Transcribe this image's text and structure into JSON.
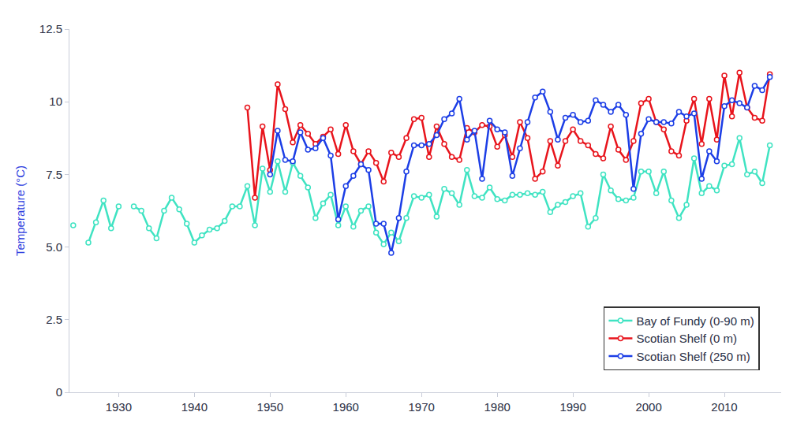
{
  "chart_data": {
    "type": "line",
    "y_label": "Temperature (°C)",
    "x": [
      1924,
      1925,
      1926,
      1927,
      1928,
      1929,
      1930,
      1931,
      1932,
      1933,
      1934,
      1935,
      1936,
      1937,
      1938,
      1939,
      1940,
      1941,
      1942,
      1943,
      1944,
      1945,
      1946,
      1947,
      1948,
      1949,
      1950,
      1951,
      1952,
      1953,
      1954,
      1955,
      1956,
      1957,
      1958,
      1959,
      1960,
      1961,
      1962,
      1963,
      1964,
      1965,
      1966,
      1967,
      1968,
      1969,
      1970,
      1971,
      1972,
      1973,
      1974,
      1975,
      1976,
      1977,
      1978,
      1979,
      1980,
      1981,
      1982,
      1983,
      1984,
      1985,
      1986,
      1987,
      1988,
      1989,
      1990,
      1991,
      1992,
      1993,
      1994,
      1995,
      1996,
      1997,
      1998,
      1999,
      2000,
      2001,
      2002,
      2003,
      2004,
      2005,
      2006,
      2007,
      2008,
      2009,
      2010,
      2011,
      2012,
      2013,
      2014,
      2015,
      2016
    ],
    "series": [
      {
        "name": "Bay of Fundy (0-90 m)",
        "color": "#3fe3c2",
        "marker": "circle",
        "values": [
          5.75,
          null,
          5.15,
          5.85,
          6.6,
          5.65,
          6.4,
          null,
          6.4,
          6.25,
          5.65,
          5.3,
          6.25,
          6.7,
          6.3,
          5.8,
          5.15,
          5.4,
          5.6,
          5.65,
          5.9,
          6.4,
          6.4,
          7.1,
          5.75,
          7.7,
          6.9,
          7.95,
          6.9,
          7.9,
          7.45,
          7.05,
          6.0,
          6.5,
          6.8,
          5.75,
          6.4,
          5.7,
          6.25,
          6.4,
          5.5,
          5.1,
          5.5,
          5.2,
          6.0,
          6.75,
          6.7,
          6.8,
          6.05,
          7.0,
          6.85,
          6.45,
          7.65,
          6.75,
          6.7,
          7.05,
          6.65,
          6.6,
          6.8,
          6.8,
          6.85,
          6.8,
          6.9,
          6.2,
          6.45,
          6.55,
          6.75,
          6.85,
          5.7,
          6.0,
          7.5,
          6.95,
          6.65,
          6.6,
          6.7,
          7.6,
          7.6,
          6.85,
          7.6,
          6.6,
          6.0,
          6.45,
          8.05,
          6.85,
          7.1,
          6.95,
          7.8,
          7.85,
          8.75,
          7.5,
          7.6,
          7.2,
          8.5
        ]
      },
      {
        "name": "Scotian Shelf (0 m)",
        "color": "#e8141c",
        "marker": "circle",
        "values": [
          null,
          null,
          null,
          null,
          null,
          null,
          null,
          null,
          null,
          null,
          null,
          null,
          null,
          null,
          null,
          null,
          null,
          null,
          null,
          null,
          null,
          null,
          null,
          9.8,
          6.7,
          9.15,
          7.65,
          10.6,
          9.75,
          8.6,
          9.2,
          8.9,
          8.55,
          8.8,
          9.05,
          8.2,
          9.2,
          8.3,
          7.85,
          8.3,
          7.9,
          7.25,
          8.25,
          8.1,
          8.75,
          9.4,
          9.45,
          8.1,
          9.15,
          8.55,
          8.1,
          8.0,
          9.1,
          8.95,
          9.2,
          9.15,
          8.45,
          8.85,
          8.1,
          9.3,
          8.75,
          7.35,
          7.6,
          8.65,
          7.8,
          8.65,
          9.05,
          8.65,
          8.5,
          8.2,
          8.05,
          9.15,
          8.35,
          8.0,
          8.65,
          9.95,
          10.1,
          9.3,
          9.05,
          8.3,
          8.15,
          9.35,
          10.1,
          8.55,
          10.1,
          8.7,
          10.9,
          9.5,
          11.0,
          9.8,
          9.45,
          9.35,
          10.95
        ]
      },
      {
        "name": "Scotian Shelf (250 m)",
        "color": "#1c3ee6",
        "marker": "circle",
        "values": [
          null,
          null,
          null,
          null,
          null,
          null,
          null,
          null,
          null,
          null,
          null,
          null,
          null,
          null,
          null,
          null,
          null,
          null,
          null,
          null,
          null,
          null,
          null,
          null,
          null,
          null,
          7.5,
          9.0,
          8.0,
          7.95,
          8.95,
          8.35,
          8.4,
          8.75,
          8.15,
          5.95,
          7.1,
          7.45,
          7.85,
          7.65,
          5.8,
          5.8,
          4.8,
          6.0,
          7.6,
          8.5,
          8.5,
          8.55,
          8.85,
          9.4,
          9.6,
          10.1,
          8.7,
          9.0,
          7.35,
          9.35,
          9.05,
          8.95,
          7.45,
          8.4,
          9.3,
          10.15,
          10.35,
          9.65,
          8.7,
          9.45,
          9.55,
          9.3,
          9.35,
          10.05,
          9.9,
          9.65,
          9.9,
          9.55,
          7.0,
          8.9,
          9.4,
          9.3,
          9.3,
          9.25,
          9.65,
          9.5,
          9.6,
          7.35,
          8.3,
          7.95,
          9.85,
          10.05,
          9.95,
          9.8,
          10.55,
          10.4,
          10.85
        ]
      }
    ],
    "xlim": [
      1923.5,
      2017.5
    ],
    "xticks": [
      1930,
      1940,
      1950,
      1960,
      1970,
      1980,
      1990,
      2000,
      2010
    ],
    "ylim": [
      0,
      12.5
    ],
    "yticks": [
      0,
      2.5,
      {
        "value": 5,
        "label": "5.0"
      },
      7.5,
      10,
      12.5
    ],
    "grid": false,
    "legend": "lower right"
  }
}
